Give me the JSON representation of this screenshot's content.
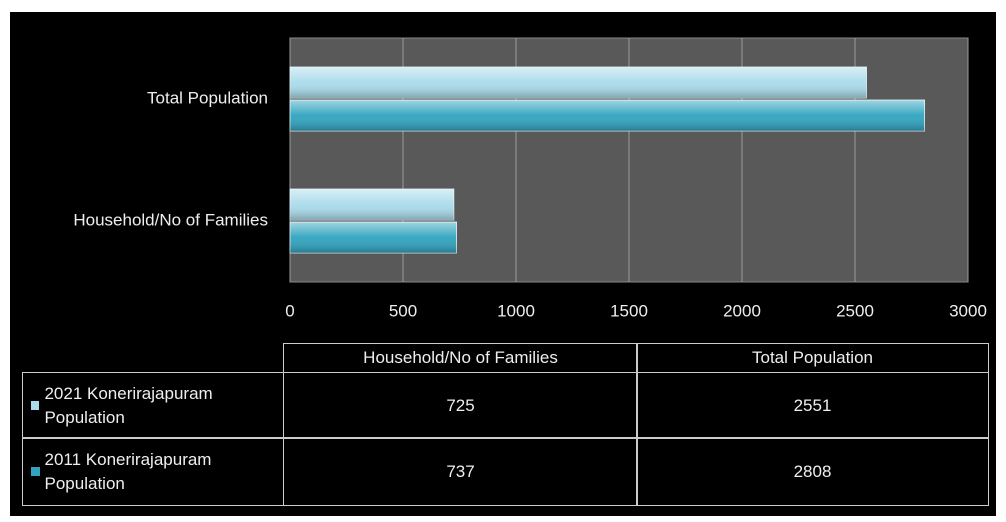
{
  "chart_data": {
    "type": "bar",
    "orientation": "horizontal",
    "categories": [
      "Household/No of Families",
      "Total Population"
    ],
    "series": [
      {
        "name": "2021  Konerirajapuram Population",
        "color": "#a9dbea",
        "values": [
          725,
          2551
        ]
      },
      {
        "name": "2011 Konerirajapuram Population",
        "color": "#2fa3bf",
        "values": [
          737,
          2808
        ]
      }
    ],
    "xlim": [
      0,
      3000
    ],
    "xticks": [
      0,
      500,
      1000,
      1500,
      2000,
      2500,
      3000
    ],
    "grid": true
  }
}
